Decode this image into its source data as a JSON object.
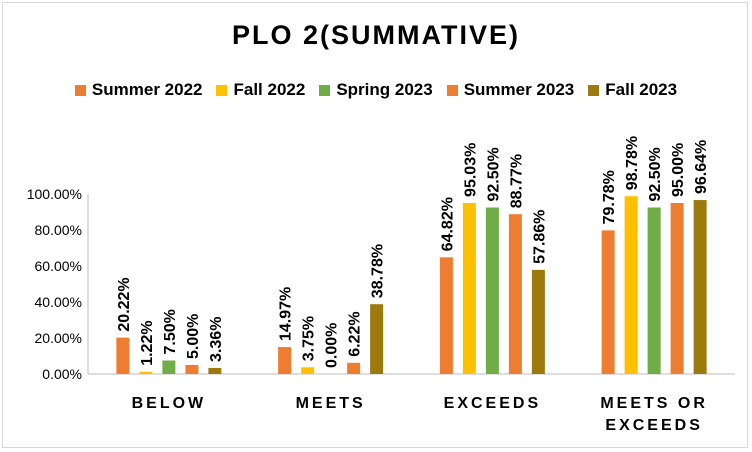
{
  "chart_data": {
    "type": "bar",
    "title": "PLO 2(SUMMATIVE)",
    "categories": [
      "BELOW",
      "MEETS",
      "EXCEEDS",
      "MEETS OR EXCEEDS"
    ],
    "category_lines": [
      [
        "BELOW"
      ],
      [
        "MEETS"
      ],
      [
        "EXCEEDS"
      ],
      [
        "MEETS OR",
        "EXCEEDS"
      ]
    ],
    "series": [
      {
        "name": "Summer 2022",
        "color": "#ed7d31",
        "values": [
          20.22,
          14.97,
          64.82,
          79.78
        ],
        "labels": [
          "20.22%",
          "14.97%",
          "64.82%",
          "79.78%"
        ]
      },
      {
        "name": "Fall 2022",
        "color": "#ffc000",
        "values": [
          1.22,
          3.75,
          95.03,
          98.78
        ],
        "labels": [
          "1.22%",
          "3.75%",
          "95.03%",
          "98.78%"
        ]
      },
      {
        "name": "Spring 2023",
        "color": "#70ad47",
        "values": [
          7.5,
          0.0,
          92.5,
          92.5
        ],
        "labels": [
          "7.50%",
          "0.00%",
          "92.50%",
          "92.50%"
        ]
      },
      {
        "name": "Summer 2023",
        "color": "#ed7d31",
        "values": [
          5.0,
          6.22,
          88.77,
          95.0
        ],
        "labels": [
          "5.00%",
          "6.22%",
          "88.77%",
          "95.00%"
        ]
      },
      {
        "name": "Fall 2023",
        "color": "#9c7a0e",
        "values": [
          3.36,
          38.78,
          57.86,
          96.64
        ],
        "labels": [
          "3.36%",
          "38.78%",
          "57.86%",
          "96.64%"
        ]
      }
    ],
    "yticks": [
      "0.00%",
      "20.00%",
      "40.00%",
      "60.00%",
      "80.00%",
      "100.00%"
    ],
    "ylim": [
      0,
      100
    ],
    "xlabel": "",
    "ylabel": "",
    "grid": false,
    "legend_position": "top"
  }
}
